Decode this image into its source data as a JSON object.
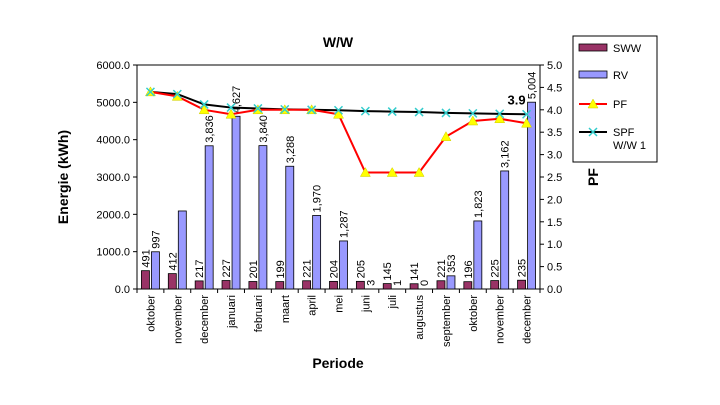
{
  "chart_data": {
    "type": "bar",
    "title": "W/W",
    "xlabel": "Periode",
    "ylabel": "Energie (kWh)",
    "y2label": "PF",
    "categories": [
      "oktober",
      "november",
      "december",
      "januari",
      "februari",
      "maart",
      "april",
      "mei",
      "juni",
      "juli",
      "augustus",
      "september",
      "oktober",
      "november",
      "december"
    ],
    "ylim": [
      0,
      6000
    ],
    "yticks": [
      "0.0",
      "1000.0",
      "2000.0",
      "3000.0",
      "4000.0",
      "5000.0",
      "6000.0"
    ],
    "y2lim": [
      0,
      5
    ],
    "y2ticks": [
      "0.0",
      "0.5",
      "1.0",
      "1.5",
      "2.0",
      "2.5",
      "3.0",
      "3.5",
      "4.0",
      "4.5",
      "5.0"
    ],
    "series": [
      {
        "name": "SWW",
        "kind": "bar",
        "axis": "left",
        "color": "#993366",
        "values": [
          491,
          412,
          217,
          227,
          201,
          199,
          221,
          204,
          205,
          145,
          141,
          221,
          196,
          225,
          235
        ],
        "labels": [
          "491",
          "412",
          "217",
          "227",
          "201",
          "199",
          "221",
          "204",
          "205",
          "145",
          "141",
          "221",
          "196",
          "225",
          "235"
        ]
      },
      {
        "name": "RV",
        "kind": "bar",
        "axis": "left",
        "color": "#9999ff",
        "values": [
          997,
          2090,
          3836,
          4627,
          3840,
          3288,
          1970,
          1287,
          3,
          1,
          0,
          353,
          1823,
          3162,
          5004
        ],
        "labels": [
          "997",
          "",
          "3,836",
          "4,627",
          "3,840",
          "3,288",
          "1,970",
          "1,287",
          "3",
          "1",
          "0",
          "353",
          "1,823",
          "3,162",
          "5,004"
        ]
      },
      {
        "name": "PF",
        "kind": "line",
        "axis": "right",
        "color": "#ff0000",
        "marker": "triangle",
        "marker_color": "#ffff00",
        "values": [
          4.4,
          4.3,
          4.0,
          3.9,
          4.0,
          4.0,
          4.0,
          3.9,
          2.6,
          2.6,
          2.6,
          3.4,
          3.75,
          3.8,
          3.7
        ]
      },
      {
        "name": "SPF\nW/W 1",
        "kind": "line",
        "axis": "right",
        "color": "#000000",
        "marker": "x",
        "marker_color": "#33cccc",
        "values": [
          4.4,
          4.35,
          4.12,
          4.05,
          4.03,
          4.01,
          4.0,
          3.99,
          3.97,
          3.96,
          3.95,
          3.93,
          3.92,
          3.91,
          3.9
        ]
      }
    ],
    "annotations": [
      {
        "text": "3.9",
        "series": "SPF\nW/W 1",
        "index": 14
      }
    ],
    "legend": {
      "position": "right",
      "entries": [
        "SWW",
        "RV",
        "PF",
        "SPF",
        "W/W 1"
      ]
    },
    "grid": false
  }
}
